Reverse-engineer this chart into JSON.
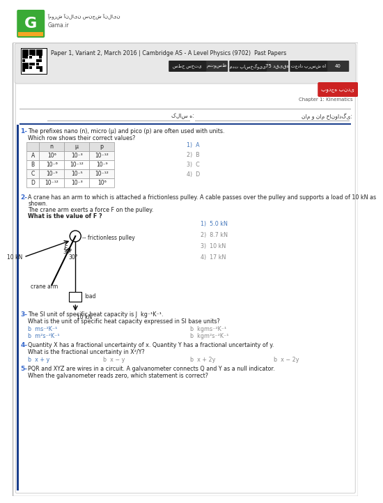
{
  "bg_color": "#ffffff",
  "logo_green": "#3aaa35",
  "logo_orange": "#f5a623",
  "title_text": "Paper 1, Variant 2, March 2016 | Cambridge AS - A Level Physics (9702)  Past Papers",
  "site_name": "Gama.ir",
  "site_persian": "آموزش آنلاین سنجش آنلاین",
  "chapter": "Chapter 1: Kinematics",
  "badge_text": "بودجه بندی",
  "label_q": "تعداد پرسش ها",
  "label_q_val": "40",
  "label_t": "مدت پاسخگویی",
  "label_t_val": "75 دقیقه",
  "label_l": "سطح سختی",
  "label_l_val": "متوسط",
  "name_label": "نام و نام خانوادگی:",
  "class_label": "کلاس ه:",
  "q1_num": "1-",
  "q1_text": "The prefixes nano (n), micro (μ) and pico (p) are often used with units.",
  "q1_sub": "Which row shows their correct values?",
  "table_headers": [
    "",
    "n",
    "μ",
    "p"
  ],
  "table_rows": [
    [
      "A",
      "10⁶",
      "10⁻³",
      "10⁻¹²"
    ],
    [
      "B",
      "10⁻⁶",
      "10⁻¹²",
      "10⁻⁹"
    ],
    [
      "C",
      "10⁻⁹",
      "10⁻⁵",
      "10⁻¹²"
    ],
    [
      "D",
      "10⁻¹²",
      "10⁻³",
      "10⁶"
    ]
  ],
  "q1_answers": [
    "1)  A",
    "2)  B",
    "3)  C",
    "4)  D"
  ],
  "q2_num": "2-",
  "q2_line1": "A crane has an arm to which is attached a frictionless pulley. A cable passes over the pulley and supports a load of 10 kN as",
  "q2_line2": "shown.",
  "q2_sub1": "The crane arm exerts a force F on the pulley.",
  "q2_sub2": "What is the value of F ?",
  "q2_answers": [
    "1)  5.0 kN",
    "2)  8.7 kN",
    "3)  10 kN",
    "4)  17 kN"
  ],
  "q3_num": "3-",
  "q3_text": "The SI unit of specific heat capacity is J  kg⁻¹K⁻¹.",
  "q3_sub": "What is the unit of specific heat capacity expressed in SI base units?",
  "q3_ans_a": "b  ms⁻²K⁻¹",
  "q3_ans_b": "b  m²s⁻²K⁻¹",
  "q3_ans_c": "b  kgms⁻²K⁻¹",
  "q3_ans_d": "b  kgm²s⁻²K⁻¹",
  "q4_num": "4-",
  "q4_text": "Quantity X has a fractional uncertainty of x. Quantity Y has a fractional uncertainty of y.",
  "q4_sub": "What is the fractional uncertainty in X²/Y?",
  "q4_ans_a": "b  x + y",
  "q4_ans_b": "b  x − y",
  "q4_ans_c": "b  x + 2y",
  "q4_ans_d": "b  x − 2y",
  "q5_num": "5-",
  "q5_text": "PQR and XYZ are wires in a circuit. A galvanometer connects Q and Y as a null indicator.",
  "q5_sub": "When the galvanometer reads zero, which statement is correct?",
  "blue_accent": "#1a3e8c",
  "light_blue_text": "#3366cc",
  "answer_blue": "#4477bb",
  "answer_gray": "#888888",
  "dark_gray": "#444444",
  "mid_gray": "#888888",
  "border_gray": "#bbbbbb",
  "panel_gray": "#e8e8e8",
  "red_badge": "#cc2222",
  "dark_badge": "#333333",
  "orange_badge": "#cc5500"
}
